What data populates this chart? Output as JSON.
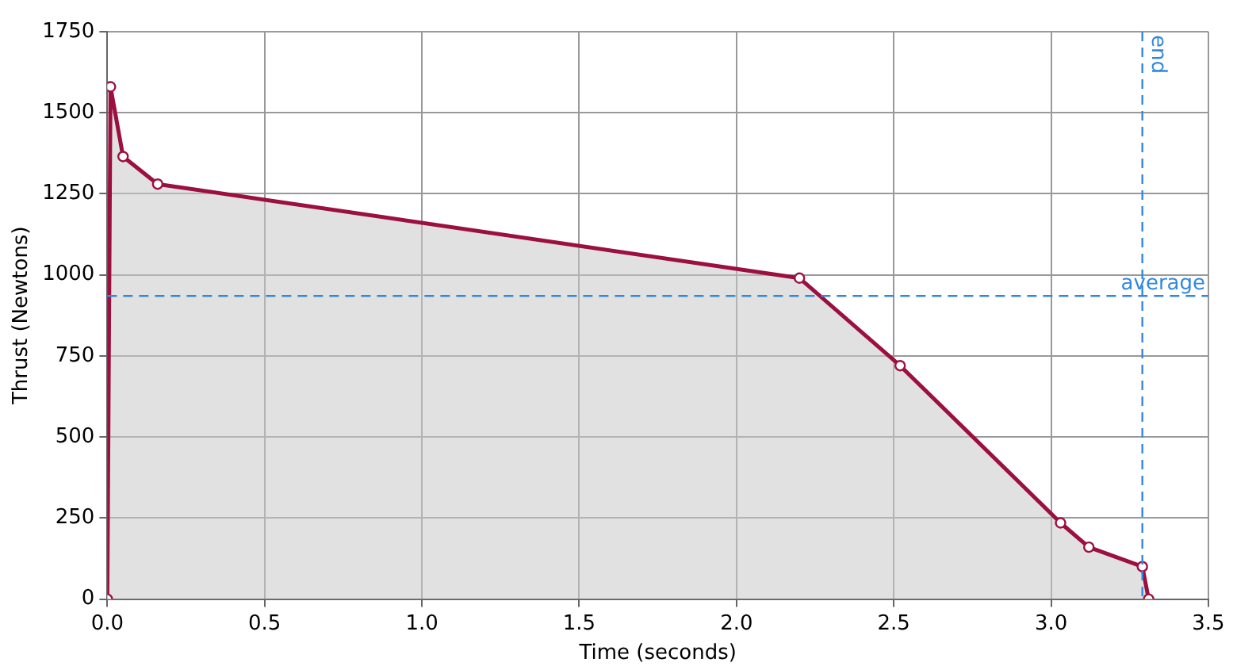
{
  "chart_data": {
    "type": "area",
    "xlabel": "Time (seconds)",
    "ylabel": "Thrust (Newtons)",
    "x": [
      0,
      0.01,
      0.05,
      0.16,
      2.2,
      2.52,
      3.03,
      3.12,
      3.29,
      3.31
    ],
    "series": [
      {
        "color": "#9b1040",
        "values": [
          0,
          1580,
          1365,
          1280,
          990,
          720,
          235,
          160,
          100,
          0
        ]
      }
    ],
    "xlim": [
      0,
      3.5
    ],
    "xticks": [
      {
        "value": 0,
        "label": "0.0"
      },
      {
        "value": 0.5,
        "label": "0.5"
      },
      {
        "value": 1,
        "label": "1.0"
      },
      {
        "value": 1.5,
        "label": "1.5"
      },
      {
        "value": 2,
        "label": "2.0"
      },
      {
        "value": 2.5,
        "label": "2.5"
      },
      {
        "value": 3,
        "label": "3.0"
      },
      {
        "value": 3.5,
        "label": "3.5"
      }
    ],
    "ylim": [
      0,
      1750
    ],
    "yticks": [
      0,
      250,
      500,
      750,
      1000,
      1250,
      1500,
      1750
    ],
    "ref_lines": [
      {
        "axis": "y",
        "value": 935,
        "label": "average",
        "color": "#3388dd",
        "line_style": "dashed"
      },
      {
        "axis": "x",
        "value": 3.29,
        "label": "end",
        "color": "#3388dd",
        "line_style": "dashed"
      }
    ],
    "grid": true,
    "legend": false,
    "marker": "circle"
  }
}
